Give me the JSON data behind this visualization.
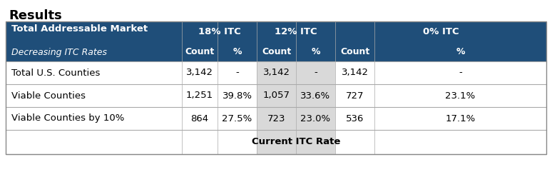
{
  "title": "Results",
  "header_bg_color": "#1F4E79",
  "header_text_color": "#FFFFFF",
  "highlight_bg_color": "#D9D9D9",
  "row_bg_color": "#FFFFFF",
  "border_color": "#AAAAAA",
  "title_fontsize": 13,
  "header_fontsize": 9.5,
  "cell_fontsize": 9.5,
  "col1_label_bold": "Total Addressable Market",
  "col1_label_italic": "Decreasing ITC Rates",
  "group_headers": [
    "18% ITC",
    "12% ITC",
    "0% ITC"
  ],
  "sub_headers": [
    "Count",
    "%",
    "Count",
    "%",
    "Count",
    "%"
  ],
  "rows": [
    {
      "label": "Total U.S. Counties",
      "itc18_count": "3,142",
      "itc18_pct": "-",
      "itc12_count": "3,142",
      "itc12_pct": "-",
      "itc0_count": "3,142",
      "itc0_pct": "-"
    },
    {
      "label": "Viable Counties",
      "itc18_count": "1,251",
      "itc18_pct": "39.8%",
      "itc12_count": "1,057",
      "itc12_pct": "33.6%",
      "itc0_count": "727",
      "itc0_pct": "23.1%"
    },
    {
      "label": "Viable Counties by 10%",
      "itc18_count": "864",
      "itc18_pct": "27.5%",
      "itc12_count": "723",
      "itc12_pct": "23.0%",
      "itc0_count": "536",
      "itc0_pct": "17.1%"
    }
  ],
  "footer_label": "Current ITC Rate",
  "footer_fontsize": 9.5
}
